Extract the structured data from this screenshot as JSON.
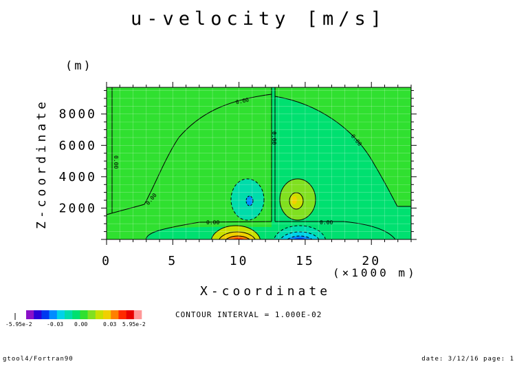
{
  "chart_data": {
    "type": "heatmap",
    "title": "u-velocity [m/s]",
    "xlabel": "X-coordinate",
    "x_unit": "(×1000 m)",
    "ylabel": "Z-coordinate",
    "y_unit": "(m)",
    "xlim": [
      0,
      23
    ],
    "ylim": [
      0,
      9700
    ],
    "x_ticks": [
      0,
      5,
      10,
      15,
      20
    ],
    "y_ticks": [
      2000,
      4000,
      6000,
      8000
    ],
    "contour_label": "0.00",
    "contour_interval_text": "CONTOUR INTERVAL = 1.000E-02",
    "colorbar": {
      "labels": [
        "-5.95e-2",
        "-0.03",
        "0.00",
        "0.03",
        "5.95e-2"
      ],
      "colors": [
        "#8a10c8",
        "#2a00d8",
        "#0038f0",
        "#008cff",
        "#00d2e8",
        "#00dcaa",
        "#00e070",
        "#30e030",
        "#80e020",
        "#c8e000",
        "#f0d000",
        "#ff8000",
        "#ff2a00",
        "#e80000",
        "#ff9898"
      ]
    },
    "features": [
      {
        "name": "negative-cell",
        "x": 10.6,
        "z": 2600,
        "value": -0.02
      },
      {
        "name": "positive-cell",
        "x": 14.2,
        "z": 2700,
        "value": 0.02
      },
      {
        "name": "surface-max",
        "x": 10.7,
        "z": 150,
        "value": 0.0595
      },
      {
        "name": "surface-min",
        "x": 14.2,
        "z": 150,
        "value": -0.0595
      }
    ]
  },
  "footer": {
    "left": "gtool4/Fortran90",
    "right": "date: 3/12/16 page: 1"
  }
}
